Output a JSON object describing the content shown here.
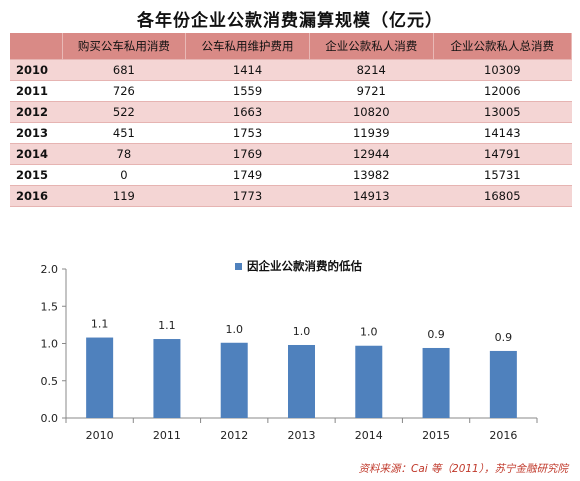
{
  "title": "各年份企业公款消费漏算规模（亿元）",
  "table": {
    "headers": [
      "",
      "购买公车私用消费",
      "公车私用维护费用",
      "企业公款私人消费",
      "企业公款私人总消费"
    ],
    "rows": [
      [
        "2010",
        "681",
        "1414",
        "8214",
        "10309"
      ],
      [
        "2011",
        "726",
        "1559",
        "9721",
        "12006"
      ],
      [
        "2012",
        "522",
        "1663",
        "10820",
        "13005"
      ],
      [
        "2013",
        "451",
        "1753",
        "11939",
        "14143"
      ],
      [
        "2014",
        "78",
        "1769",
        "12944",
        "14791"
      ],
      [
        "2015",
        "0",
        "1749",
        "13982",
        "15731"
      ],
      [
        "2016",
        "119",
        "1773",
        "14913",
        "16805"
      ]
    ]
  },
  "chart_data": {
    "type": "bar",
    "categories": [
      "2010",
      "2011",
      "2012",
      "2013",
      "2014",
      "2015",
      "2016"
    ],
    "series": [
      {
        "name": "因企业公款消费的低估",
        "values": [
          1.08,
          1.06,
          1.01,
          0.98,
          0.97,
          0.94,
          0.9
        ],
        "labels": [
          "1.1",
          "1.1",
          "1.0",
          "1.0",
          "1.0",
          "0.9",
          "0.9"
        ],
        "color": "#4f81bd"
      }
    ],
    "ylim": [
      0,
      2.0
    ],
    "yticks": [
      "0.0",
      "0.5",
      "1.0",
      "1.5",
      "2.0"
    ],
    "grid": false,
    "legend": "top-center"
  },
  "source": "资料来源：Cai 等（2011），苏宁金融研究院"
}
